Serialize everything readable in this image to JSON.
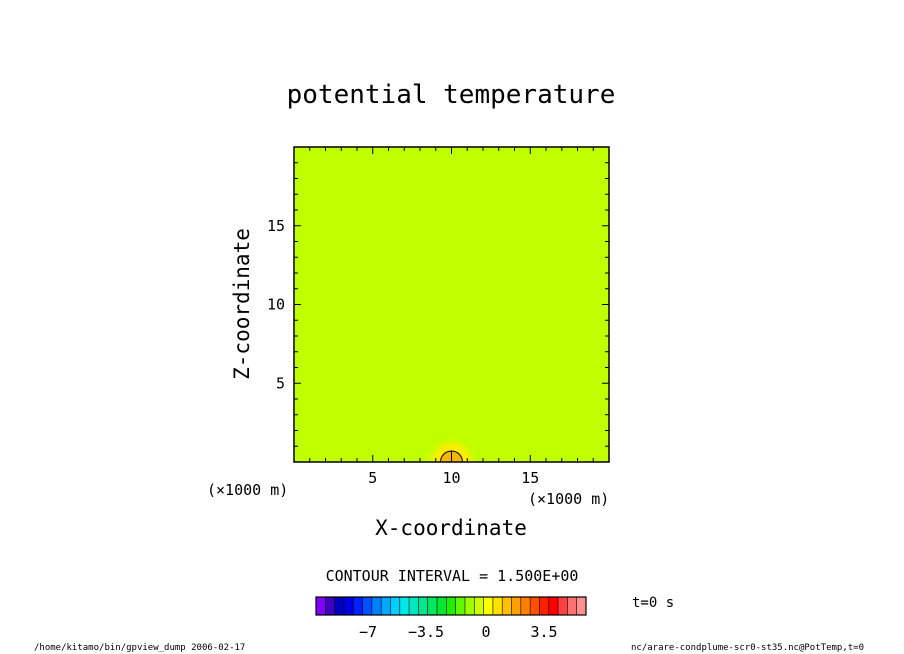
{
  "chart_data": {
    "type": "heatmap",
    "title": "potential temperature",
    "xlabel": "X-coordinate",
    "ylabel": "Z-coordinate",
    "x_unit": "(×1000 m)",
    "y_unit": "(×1000 m)",
    "xlim": [
      0,
      20
    ],
    "ylim": [
      0,
      20
    ],
    "xticks": [
      5,
      10,
      15
    ],
    "yticks": [
      5,
      10,
      15
    ],
    "field_background_color": "#bfff00",
    "anomaly": {
      "x": 10,
      "z": 0,
      "peak_value": 1.5,
      "color": "#ffd21e"
    },
    "contour_interval_text": "CONTOUR INTERVAL = 1.500E+00",
    "colorbar": {
      "ticks": [
        "-7",
        "-3.5",
        "0",
        "3.5"
      ],
      "colors": [
        "#8000ff",
        "#4000c0",
        "#0000c0",
        "#0000e0",
        "#0020ff",
        "#0050ff",
        "#0080ff",
        "#00a8ff",
        "#00d0ff",
        "#00e8e8",
        "#00e8c0",
        "#00e890",
        "#00e860",
        "#00e830",
        "#20f000",
        "#60f800",
        "#a0ff00",
        "#d0ff00",
        "#ffff00",
        "#ffe000",
        "#ffc000",
        "#ffa000",
        "#ff8000",
        "#ff5000",
        "#ff2000",
        "#ff0000",
        "#ff4040",
        "#ff7070",
        "#ff9090"
      ]
    },
    "time_label": "t=0 s"
  },
  "footer": {
    "left": "/home/kitamo/bin/gpview_dump  2006-02-17",
    "right": "nc/arare-condplume-scr0-st35.nc@PotTemp,t=0"
  }
}
